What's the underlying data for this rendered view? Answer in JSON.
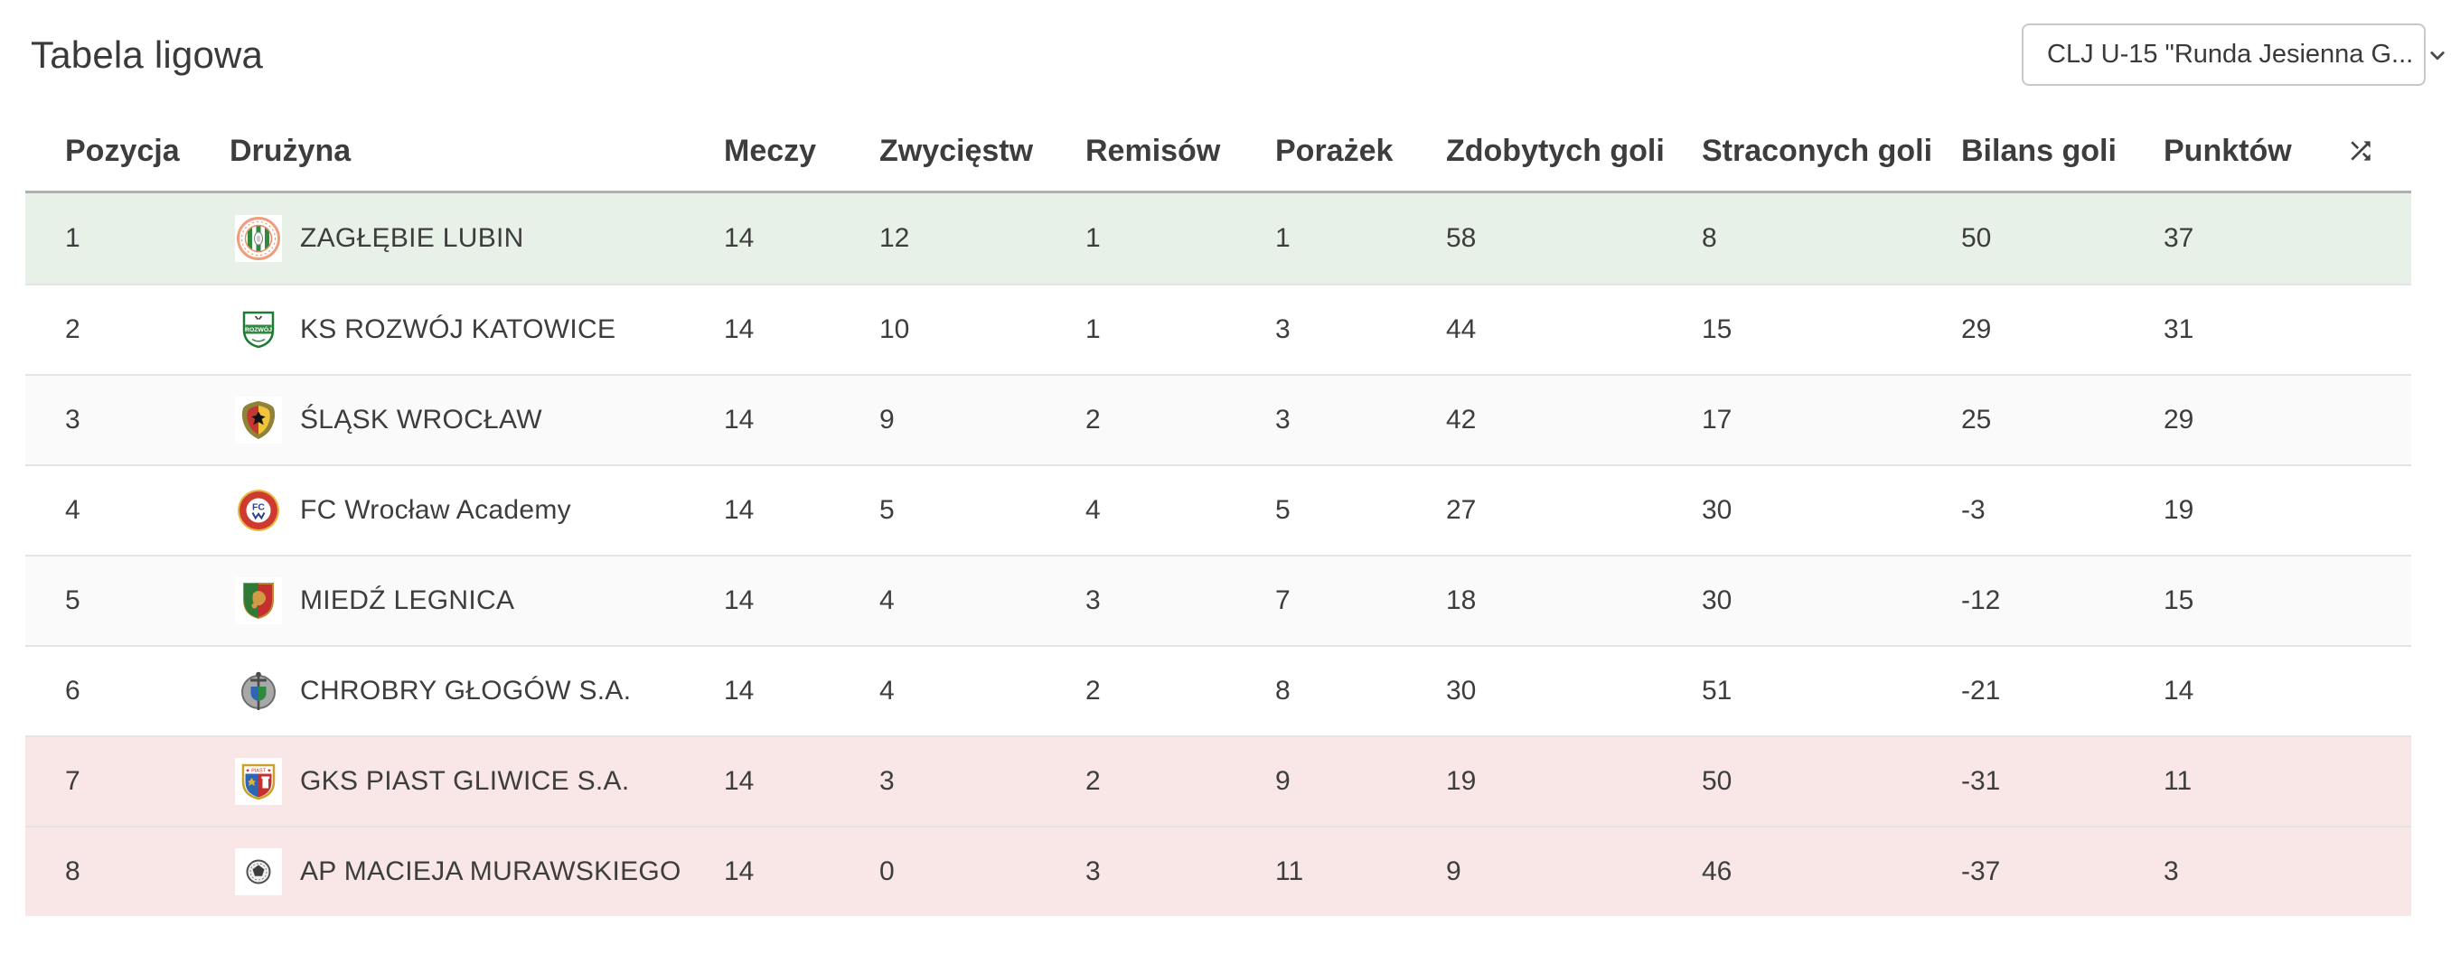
{
  "page": {
    "title": "Tabela ligowa"
  },
  "filter": {
    "selected_competition": "CLJ U-15 \"Runda Jesienna G...",
    "icon": "chevron-down-icon"
  },
  "table": {
    "columns": [
      "Pozycja",
      "Drużyna",
      "Meczy",
      "Zwycięstw",
      "Remisów",
      "Porażek",
      "Zdobytych goli",
      "Straconych goli",
      "Bilans goli",
      "Punktów"
    ],
    "sort_icon": "shuffle-icon",
    "rows": [
      {
        "position": "1",
        "team": "ZAGŁĘBIE LUBIN",
        "logo": "zaglebie-lubin-logo",
        "matches": "14",
        "wins": "12",
        "draws": "1",
        "losses": "1",
        "goals_for": "58",
        "goals_against": "8",
        "goal_balance": "50",
        "points": "37",
        "zone": "champion"
      },
      {
        "position": "2",
        "team": "KS ROZWÓJ KATOWICE",
        "logo": "rozwoj-katowice-logo",
        "matches": "14",
        "wins": "10",
        "draws": "1",
        "losses": "3",
        "goals_for": "44",
        "goals_against": "15",
        "goal_balance": "29",
        "points": "31",
        "zone": ""
      },
      {
        "position": "3",
        "team": "ŚLĄSK WROCŁAW",
        "logo": "slask-wroclaw-logo",
        "matches": "14",
        "wins": "9",
        "draws": "2",
        "losses": "3",
        "goals_for": "42",
        "goals_against": "17",
        "goal_balance": "25",
        "points": "29",
        "zone": ""
      },
      {
        "position": "4",
        "team": "FC Wrocław Academy",
        "logo": "fc-wroclaw-academy-logo",
        "matches": "14",
        "wins": "5",
        "draws": "4",
        "losses": "5",
        "goals_for": "27",
        "goals_against": "30",
        "goal_balance": "-3",
        "points": "19",
        "zone": ""
      },
      {
        "position": "5",
        "team": "MIEDŹ LEGNICA",
        "logo": "miedz-legnica-logo",
        "matches": "14",
        "wins": "4",
        "draws": "3",
        "losses": "7",
        "goals_for": "18",
        "goals_against": "30",
        "goal_balance": "-12",
        "points": "15",
        "zone": ""
      },
      {
        "position": "6",
        "team": "CHROBRY GŁOGÓW S.A.",
        "logo": "chrobry-glogow-logo",
        "matches": "14",
        "wins": "4",
        "draws": "2",
        "losses": "8",
        "goals_for": "30",
        "goals_against": "51",
        "goal_balance": "-21",
        "points": "14",
        "zone": ""
      },
      {
        "position": "7",
        "team": "GKS PIAST GLIWICE S.A.",
        "logo": "piast-gliwice-logo",
        "matches": "14",
        "wins": "3",
        "draws": "2",
        "losses": "9",
        "goals_for": "19",
        "goals_against": "50",
        "goal_balance": "-31",
        "points": "11",
        "zone": "relegation"
      },
      {
        "position": "8",
        "team": "AP MACIEJA MURAWSKIEGO",
        "logo": "ap-murawskiego-logo",
        "matches": "14",
        "wins": "0",
        "draws": "3",
        "losses": "11",
        "goals_for": "9",
        "goals_against": "46",
        "goal_balance": "-37",
        "points": "3",
        "zone": "relegation"
      }
    ]
  },
  "colors": {
    "champion_row": "#e8f1e8",
    "relegation_row": "#f9e7e7",
    "zebra_row": "#fafafa",
    "text": "#3d3d3d",
    "table_top_border": "#b0b0b0",
    "row_divider": "#e3e3e3",
    "dropdown_border": "#c8c8c8"
  }
}
